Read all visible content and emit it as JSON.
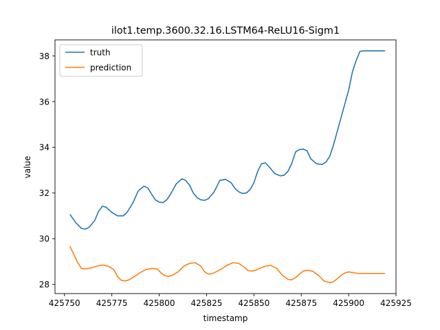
{
  "chart_data": {
    "type": "line",
    "title": "ilot1.temp.3600.32.16.LSTM64-ReLU16-Sigm1",
    "xlabel": "timestamp",
    "ylabel": "value",
    "xlim": [
      425745,
      425925
    ],
    "ylim": [
      27.6,
      38.7
    ],
    "xticks": [
      425750,
      425775,
      425800,
      425825,
      425850,
      425875,
      425900,
      425925
    ],
    "yticks": [
      28,
      30,
      32,
      34,
      36,
      38
    ],
    "grid": false,
    "legend": "top-left",
    "series": [
      {
        "name": "truth",
        "color": "#1f77b4",
        "x": [
          425753,
          425756,
          425759,
          425761,
          425763,
          425766,
          425768,
          425770,
          425772,
          425775,
          425778,
          425781,
          425783,
          425786,
          425789,
          425792,
          425794,
          425796,
          425798,
          425800,
          425802,
          425804,
          425806,
          425809,
          425812,
          425814,
          425816,
          425818,
          425820,
          425822,
          425824,
          425826,
          425829,
          425832,
          425835,
          425838,
          425840,
          425842,
          425844,
          425846,
          425848,
          425850,
          425852,
          425854,
          425856,
          425858,
          425861,
          425864,
          425866,
          425868,
          425870,
          425872,
          425874,
          425876,
          425878,
          425880,
          425883,
          425886,
          425888,
          425890,
          425892,
          425894,
          425896,
          425898,
          425900,
          425902,
          425904,
          425906,
          425908,
          425910,
          425912,
          425914,
          425915,
          425916,
          425917,
          425918,
          425919
        ],
        "y": [
          31.05,
          30.7,
          30.45,
          30.42,
          30.5,
          30.8,
          31.2,
          31.42,
          31.38,
          31.15,
          31.0,
          31.0,
          31.15,
          31.55,
          32.1,
          32.3,
          32.22,
          31.95,
          31.7,
          31.6,
          31.58,
          31.7,
          31.95,
          32.4,
          32.62,
          32.55,
          32.35,
          32.0,
          31.8,
          31.7,
          31.68,
          31.75,
          32.05,
          32.55,
          32.6,
          32.45,
          32.2,
          32.05,
          31.98,
          32.0,
          32.15,
          32.45,
          32.95,
          33.28,
          33.32,
          33.15,
          32.85,
          32.75,
          32.78,
          32.95,
          33.3,
          33.8,
          33.9,
          33.92,
          33.85,
          33.5,
          33.28,
          33.25,
          33.35,
          33.6,
          34.1,
          34.7,
          35.3,
          35.9,
          36.5,
          37.3,
          37.8,
          38.2,
          38.22,
          38.22,
          38.22,
          38.22,
          38.22,
          38.22,
          38.22,
          38.22,
          38.22
        ]
      },
      {
        "name": "prediction",
        "color": "#ff7f0e",
        "x": [
          425753,
          425755,
          425757,
          425759,
          425761,
          425764,
          425767,
          425770,
          425773,
          425776,
          425778,
          425780,
          425782,
          425784,
          425787,
          425790,
          425793,
          425796,
          425799,
          425801,
          425803,
          425805,
          425807,
          425810,
          425813,
          425816,
          425819,
          425822,
          425824,
          425826,
          425828,
          425830,
          425833,
          425836,
          425839,
          425842,
          425845,
          425847,
          425849,
          425851,
          425853,
          425856,
          425859,
          425862,
          425865,
          425868,
          425870,
          425872,
          425874,
          425876,
          425878,
          425881,
          425884,
          425887,
          425890,
          425892,
          425894,
          425896,
          425898,
          425900,
          425902,
          425905,
          425908,
          425911,
          425914,
          425917,
          425919
        ],
        "y": [
          29.65,
          29.3,
          28.95,
          28.7,
          28.68,
          28.72,
          28.8,
          28.85,
          28.8,
          28.65,
          28.35,
          28.18,
          28.15,
          28.2,
          28.35,
          28.52,
          28.65,
          28.7,
          28.68,
          28.5,
          28.38,
          28.35,
          28.4,
          28.55,
          28.8,
          28.92,
          28.95,
          28.8,
          28.55,
          28.45,
          28.47,
          28.55,
          28.68,
          28.85,
          28.95,
          28.92,
          28.75,
          28.6,
          28.58,
          28.62,
          28.7,
          28.8,
          28.83,
          28.7,
          28.4,
          28.22,
          28.2,
          28.3,
          28.45,
          28.58,
          28.62,
          28.58,
          28.4,
          28.15,
          28.08,
          28.12,
          28.25,
          28.4,
          28.5,
          28.55,
          28.52,
          28.48,
          28.48,
          28.48,
          28.48,
          28.48,
          28.48
        ]
      }
    ]
  }
}
